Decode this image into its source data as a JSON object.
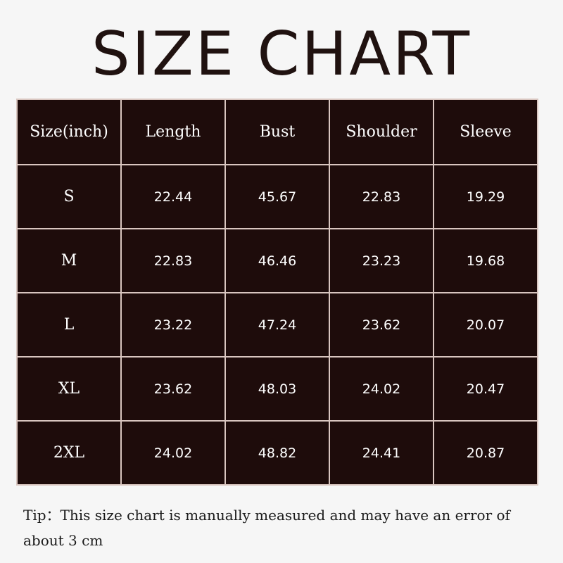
{
  "title": "SIZE CHART",
  "colors": {
    "table_bg": "#1e0c0b",
    "grid": "#d9c6c0",
    "title": "#201210"
  },
  "table": {
    "headers": [
      "Size(inch)",
      "Length",
      "Bust",
      "Shoulder",
      "Sleeve"
    ],
    "rows": [
      [
        "S",
        "22.44",
        "45.67",
        "22.83",
        "19.29"
      ],
      [
        "M",
        "22.83",
        "46.46",
        "23.23",
        "19.68"
      ],
      [
        "L",
        "23.22",
        "47.24",
        "23.62",
        "20.07"
      ],
      [
        "XL",
        "23.62",
        "48.03",
        "24.02",
        "20.47"
      ],
      [
        "2XL",
        "24.02",
        "48.82",
        "24.41",
        "20.87"
      ]
    ]
  },
  "tip": "Tip：This size chart is manually measured and may have an error of about 3 cm"
}
